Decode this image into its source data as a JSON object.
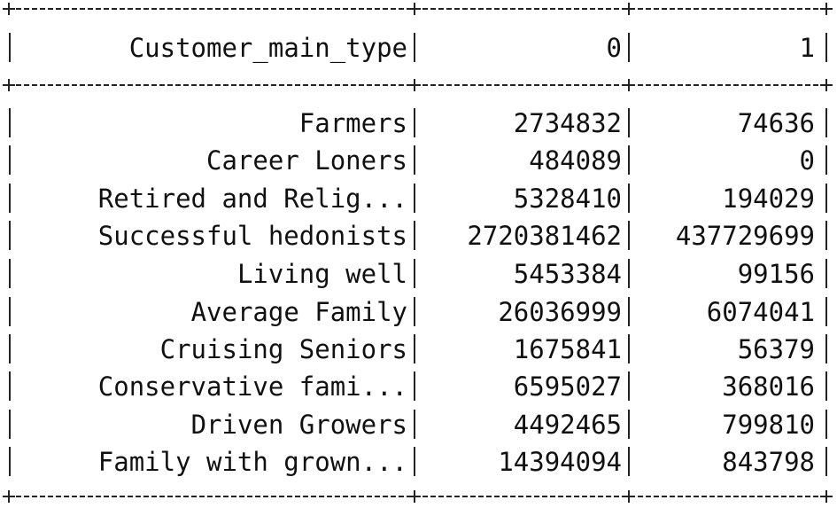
{
  "table": {
    "header": {
      "name": "Customer_main_type",
      "col0": "0",
      "col1": "1"
    },
    "rows": [
      {
        "name": "Farmers",
        "col0": "2734832",
        "col1": "74636"
      },
      {
        "name": "Career Loners",
        "col0": "484089",
        "col1": "0"
      },
      {
        "name": "Retired and Relig...",
        "col0": "5328410",
        "col1": "194029"
      },
      {
        "name": "Successful hedonists",
        "col0": "2720381462",
        "col1": "437729699"
      },
      {
        "name": "Living well",
        "col0": "5453384",
        "col1": "99156"
      },
      {
        "name": "Average Family",
        "col0": "26036999",
        "col1": "6074041"
      },
      {
        "name": "Cruising Seniors",
        "col0": "1675841",
        "col1": "56379"
      },
      {
        "name": "Conservative fami...",
        "col0": "6595027",
        "col1": "368016"
      },
      {
        "name": "Driven Growers",
        "col0": "4492465",
        "col1": "799810"
      },
      {
        "name": "Family with grown...",
        "col0": "14394094",
        "col1": "843798"
      }
    ]
  }
}
